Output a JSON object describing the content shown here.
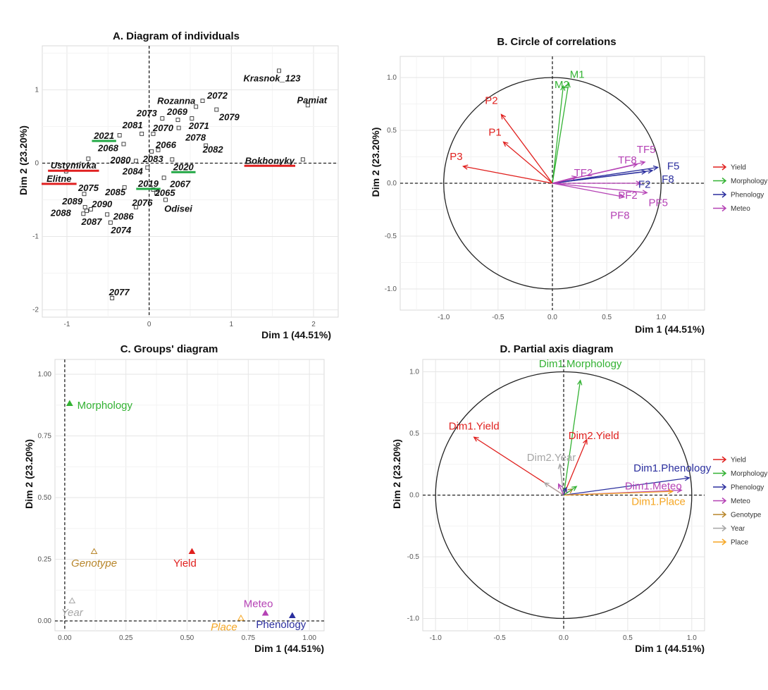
{
  "colors": {
    "Yield": "#e0201e",
    "Morphology": "#33b233",
    "Phenology": "#2b2f9e",
    "Meteo": "#b542b5",
    "Genotype": "#b8862b",
    "Year": "#a6a6a6",
    "Place": "#f5a623",
    "highlight_red": "#e02020",
    "highlight_green": "#22a845"
  },
  "chart_data": [
    {
      "type": "scatter",
      "title": "A. Diagram of individuals",
      "xlabel": "Dim 1 (44.51%)",
      "ylabel": "Dim 2 (23.20%)",
      "xlim": [
        -1.3,
        2.3
      ],
      "ylim": [
        -2.1,
        1.6
      ],
      "xticks": [
        "-1",
        "0",
        "1",
        "2"
      ],
      "yticks": [
        "-2",
        "-1",
        "0",
        "1"
      ],
      "grid": true,
      "points": [
        {
          "label": "Krasnok_123",
          "x": 1.58,
          "y": 1.26
        },
        {
          "label": "Pamiat",
          "x": 1.93,
          "y": 0.79
        },
        {
          "label": "2072",
          "x": 0.65,
          "y": 0.85
        },
        {
          "label": "Rozanna",
          "x": 0.57,
          "y": 0.77
        },
        {
          "label": "2079",
          "x": 0.82,
          "y": 0.73
        },
        {
          "label": "2073",
          "x": 0.16,
          "y": 0.61
        },
        {
          "label": "2069",
          "x": 0.35,
          "y": 0.59
        },
        {
          "label": "2071",
          "x": 0.52,
          "y": 0.61
        },
        {
          "label": "2081",
          "x": -0.09,
          "y": 0.4
        },
        {
          "label": "2070",
          "x": 0.05,
          "y": 0.4
        },
        {
          "label": "2078",
          "x": 0.36,
          "y": 0.48
        },
        {
          "label": "2021",
          "x": -0.36,
          "y": 0.38,
          "highlight": "green"
        },
        {
          "label": "2068",
          "x": -0.31,
          "y": 0.26
        },
        {
          "label": "2066",
          "x": 0.11,
          "y": 0.18
        },
        {
          "label": "2083",
          "x": 0.03,
          "y": 0.16
        },
        {
          "label": "2082",
          "x": 0.69,
          "y": 0.24
        },
        {
          "label": "Ustymivka",
          "x": -0.74,
          "y": 0.06,
          "highlight": "red"
        },
        {
          "label": "2080",
          "x": -0.16,
          "y": 0.03
        },
        {
          "label": "Bokhonyky",
          "x": 1.87,
          "y": 0.05,
          "highlight": "red"
        },
        {
          "label": "2020",
          "x": 0.28,
          "y": 0.05,
          "highlight": "green"
        },
        {
          "label": "2084",
          "x": -0.02,
          "y": -0.06
        },
        {
          "label": "Elitne",
          "x": -1.01,
          "y": -0.11,
          "highlight": "red"
        },
        {
          "label": "2067",
          "x": 0.18,
          "y": -0.2
        },
        {
          "label": "2075",
          "x": -0.79,
          "y": -0.42
        },
        {
          "label": "2085",
          "x": -0.3,
          "y": -0.33
        },
        {
          "label": "2019",
          "x": 0.05,
          "y": -0.36,
          "highlight": "green"
        },
        {
          "label": "2065",
          "x": 0.09,
          "y": -0.41
        },
        {
          "label": "Odisei",
          "x": 0.2,
          "y": -0.5
        },
        {
          "label": "2076",
          "x": -0.16,
          "y": -0.6
        },
        {
          "label": "2089",
          "x": -0.78,
          "y": -0.6
        },
        {
          "label": "2090",
          "x": -0.71,
          "y": -0.63
        },
        {
          "label": "2088",
          "x": -0.8,
          "y": -0.69
        },
        {
          "label": "2087",
          "x": -0.76,
          "y": -0.65
        },
        {
          "label": "2086",
          "x": -0.51,
          "y": -0.7
        },
        {
          "label": "2074",
          "x": -0.47,
          "y": -0.81
        },
        {
          "label": "2077",
          "x": -0.45,
          "y": -1.84
        }
      ]
    },
    {
      "type": "vector",
      "title": "B. Circle of correlations",
      "xlabel": "Dim 1 (44.51%)",
      "ylabel": "Dim 2 (23.20%)",
      "xlim": [
        -1.4,
        1.4
      ],
      "ylim": [
        -1.2,
        1.2
      ],
      "xticks": [
        "-1.0",
        "-0.5",
        "0.0",
        "0.5",
        "1.0"
      ],
      "yticks": [
        "-1.0",
        "-0.5",
        "0.0",
        "0.5",
        "1.0"
      ],
      "grid": true,
      "legend": [
        "Yield",
        "Morphology",
        "Phenology",
        "Meteo"
      ],
      "legend_position": "right",
      "vectors": [
        {
          "label": "P1",
          "group": "Yield",
          "x": -0.45,
          "y": 0.39
        },
        {
          "label": "P2",
          "group": "Yield",
          "x": -0.47,
          "y": 0.65
        },
        {
          "label": "P3",
          "group": "Yield",
          "x": -0.82,
          "y": 0.16
        },
        {
          "label": "M1",
          "group": "Morphology",
          "x": 0.15,
          "y": 0.95
        },
        {
          "label": "M2",
          "group": "Morphology",
          "x": 0.1,
          "y": 0.92
        },
        {
          "label": "F2",
          "group": "Phenology",
          "x": 0.86,
          "y": 0.11
        },
        {
          "label": "F5",
          "group": "Phenology",
          "x": 0.97,
          "y": 0.15
        },
        {
          "label": "F8",
          "group": "Phenology",
          "x": 0.92,
          "y": 0.12
        },
        {
          "label": "TF2",
          "group": "Meteo",
          "x": 0.22,
          "y": 0.06
        },
        {
          "label": "TF5",
          "group": "Meteo",
          "x": 0.85,
          "y": 0.2
        },
        {
          "label": "TF8",
          "group": "Meteo",
          "x": 0.78,
          "y": 0.18
        },
        {
          "label": "PF2",
          "group": "Meteo",
          "x": 0.81,
          "y": 0.0
        },
        {
          "label": "PF5",
          "group": "Meteo",
          "x": 0.87,
          "y": -0.09
        },
        {
          "label": "PF8",
          "group": "Meteo",
          "x": 0.66,
          "y": -0.13
        }
      ]
    },
    {
      "type": "scatter",
      "title": "C. Groups' diagram",
      "xlabel": "Dim 1 (44.51%)",
      "ylabel": "Dim 2 (23.20%)",
      "xlim": [
        -0.04,
        1.06
      ],
      "ylim": [
        -0.04,
        1.06
      ],
      "xticks": [
        "0.00",
        "0.25",
        "0.50",
        "0.75",
        "1.00"
      ],
      "yticks": [
        "0.00",
        "0.25",
        "0.50",
        "0.75",
        "1.00"
      ],
      "grid": true,
      "points": [
        {
          "label": "Morphology",
          "x": 0.02,
          "y": 0.88,
          "active": true
        },
        {
          "label": "Genotype",
          "x": 0.12,
          "y": 0.28,
          "active": false
        },
        {
          "label": "Yield",
          "x": 0.52,
          "y": 0.28,
          "active": true
        },
        {
          "label": "Year",
          "x": 0.03,
          "y": 0.08,
          "active": false
        },
        {
          "label": "Meteo",
          "x": 0.82,
          "y": 0.03,
          "active": true
        },
        {
          "label": "Place",
          "x": 0.72,
          "y": 0.01,
          "active": false
        },
        {
          "label": "Phenology",
          "x": 0.93,
          "y": 0.02,
          "active": true
        }
      ]
    },
    {
      "type": "vector",
      "title": "D. Partial axis diagram",
      "xlabel": "Dim 1 (44.51%)",
      "ylabel": "Dim 2 (23.20%)",
      "xlim": [
        -1.1,
        1.1
      ],
      "ylim": [
        -1.1,
        1.1
      ],
      "xticks": [
        "-1.0",
        "-0.5",
        "0.0",
        "0.5",
        "1.0"
      ],
      "yticks": [
        "-1.0",
        "-0.5",
        "0.0",
        "0.5",
        "1.0"
      ],
      "grid": true,
      "legend": [
        "Yield",
        "Morphology",
        "Phenology",
        "Meteo",
        "Genotype",
        "Year",
        "Place"
      ],
      "legend_position": "right",
      "vectors": [
        {
          "label": "Dim1.Morphology",
          "group": "Morphology",
          "x": 0.13,
          "y": 0.93
        },
        {
          "label": "Dim1.Yield",
          "group": "Yield",
          "x": -0.7,
          "y": 0.47
        },
        {
          "label": "Dim2.Yield",
          "group": "Yield",
          "x": 0.18,
          "y": 0.45
        },
        {
          "label": "Dim2.Year",
          "group": "Year",
          "x": -0.03,
          "y": 0.25
        },
        {
          "label": "Dim1.Phenology",
          "group": "Phenology",
          "x": 0.98,
          "y": 0.14
        },
        {
          "label": "Dim1.Meteo",
          "group": "Meteo",
          "x": 0.92,
          "y": 0.04
        },
        {
          "label": "Dim1.Place",
          "group": "Place",
          "x": 0.85,
          "y": 0.03
        },
        {
          "label": "",
          "group": "Year",
          "x": -0.15,
          "y": 0.1
        },
        {
          "label": "",
          "group": "Meteo",
          "x": -0.04,
          "y": 0.09
        },
        {
          "label": "",
          "group": "Genotype",
          "x": 0.07,
          "y": 0.05
        },
        {
          "label": "",
          "group": "Morphology",
          "x": 0.1,
          "y": 0.07
        },
        {
          "label": "",
          "group": "Phenology",
          "x": 0.02,
          "y": 0.06
        }
      ]
    }
  ]
}
